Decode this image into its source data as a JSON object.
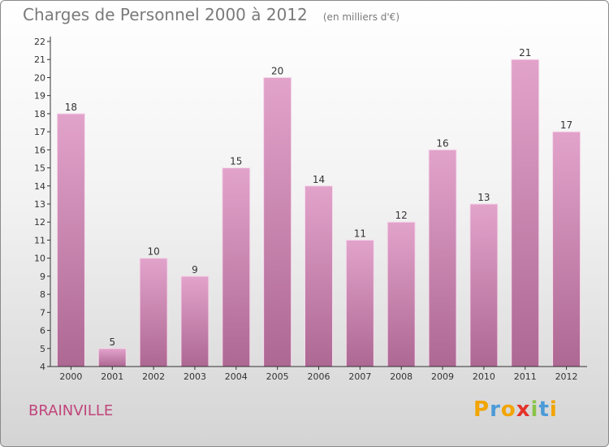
{
  "chart_title": "Charges de Personnel 2000 à 2012",
  "chart_subtitle": "(en milliers d'€)",
  "commune": "BRAINVILLE",
  "logo_text": "Proxiti",
  "colors": {
    "bar_top": "#e2a3cb",
    "bar_bottom": "#ad6893",
    "axis": "#333333",
    "label": "#333333",
    "commune": "#c0457a",
    "logo": [
      "#f2a400",
      "#4c9bd8",
      "#f2a400",
      "#e5332a",
      "#8bc34a",
      "#4c9bd8",
      "#f2a400"
    ]
  },
  "chart_data": {
    "type": "bar",
    "title": "Charges de Personnel 2000 à 2012",
    "subtitle": "(en milliers d'€)",
    "categories": [
      "2000",
      "2001",
      "2002",
      "2003",
      "2004",
      "2005",
      "2006",
      "2007",
      "2008",
      "2009",
      "2010",
      "2011",
      "2012"
    ],
    "values": [
      18,
      5,
      10,
      9,
      15,
      20,
      14,
      11,
      12,
      16,
      13,
      21,
      17
    ],
    "ylim": [
      4,
      22
    ],
    "yticks": [
      4,
      5,
      6,
      7,
      8,
      9,
      10,
      11,
      12,
      13,
      14,
      15,
      16,
      17,
      18,
      19,
      20,
      21,
      22
    ],
    "grid": false,
    "legend": "none",
    "data_labels": true
  }
}
